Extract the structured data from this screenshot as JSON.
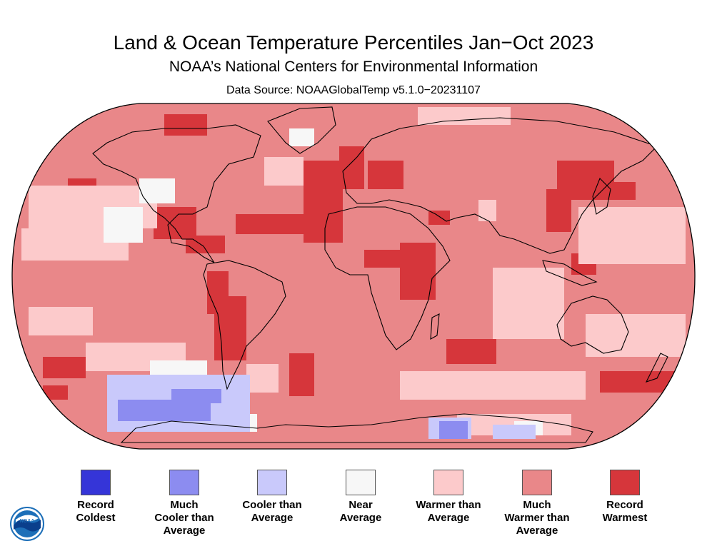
{
  "title": "Land & Ocean Temperature Percentiles Jan−Oct 2023",
  "subtitle": "NOAA’s National Centers for Environmental Information",
  "data_source": "Data Source: NOAAGlobalTemp v5.1.0−20231107",
  "map": {
    "projection": "Robinson",
    "ocean_fill": "#e98789",
    "coastline_color": "#000000"
  },
  "logo": {
    "text": "NOAA",
    "icon": "noaa-logo-icon"
  },
  "legend": [
    {
      "label": "Record\nColdest",
      "color": "#3535d8"
    },
    {
      "label": "Much\nCooler than\nAverage",
      "color": "#8c8cf0"
    },
    {
      "label": "Cooler than\nAverage",
      "color": "#c9c9fb"
    },
    {
      "label": "Near\nAverage",
      "color": "#f7f7f7"
    },
    {
      "label": "Warmer than\nAverage",
      "color": "#fccacb"
    },
    {
      "label": "Much\nWarmer than\nAverage",
      "color": "#e98789"
    },
    {
      "label": "Record\nWarmest",
      "color": "#d6363b"
    }
  ]
}
